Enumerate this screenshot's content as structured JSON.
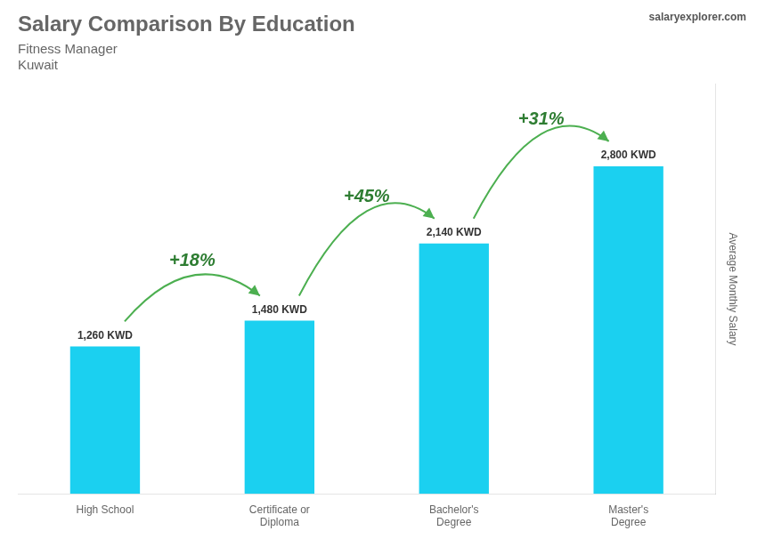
{
  "chart_data": {
    "type": "bar",
    "title": "Salary Comparison By Education",
    "subtitle": [
      "Fitness Manager",
      "Kuwait"
    ],
    "ylabel": "Average Monthly Salary",
    "categories": [
      "High School",
      "Certificate or\nDiploma",
      "Bachelor's\nDegree",
      "Master's\nDegree"
    ],
    "values": [
      1260,
      1480,
      2140,
      2800
    ],
    "value_labels": [
      "1,260 KWD",
      "1,480 KWD",
      "2,140 KWD",
      "2,800 KWD"
    ],
    "data_labels": true,
    "color": "#1BD0F0",
    "ylim": [
      0,
      3500
    ],
    "grid": false,
    "tick_labels": "x",
    "annotations": [
      {
        "text": "+18%",
        "from": "High School",
        "to": "Certificate or\nDiploma"
      },
      {
        "text": "+45%",
        "from": "Certificate or\nDiploma",
        "to": "Bachelor's\nDegree"
      },
      {
        "text": "+31%",
        "from": "Bachelor's\nDegree",
        "to": "Master's\nDegree"
      },
      {
        "text": "salaryexplorer.com"
      }
    ]
  }
}
